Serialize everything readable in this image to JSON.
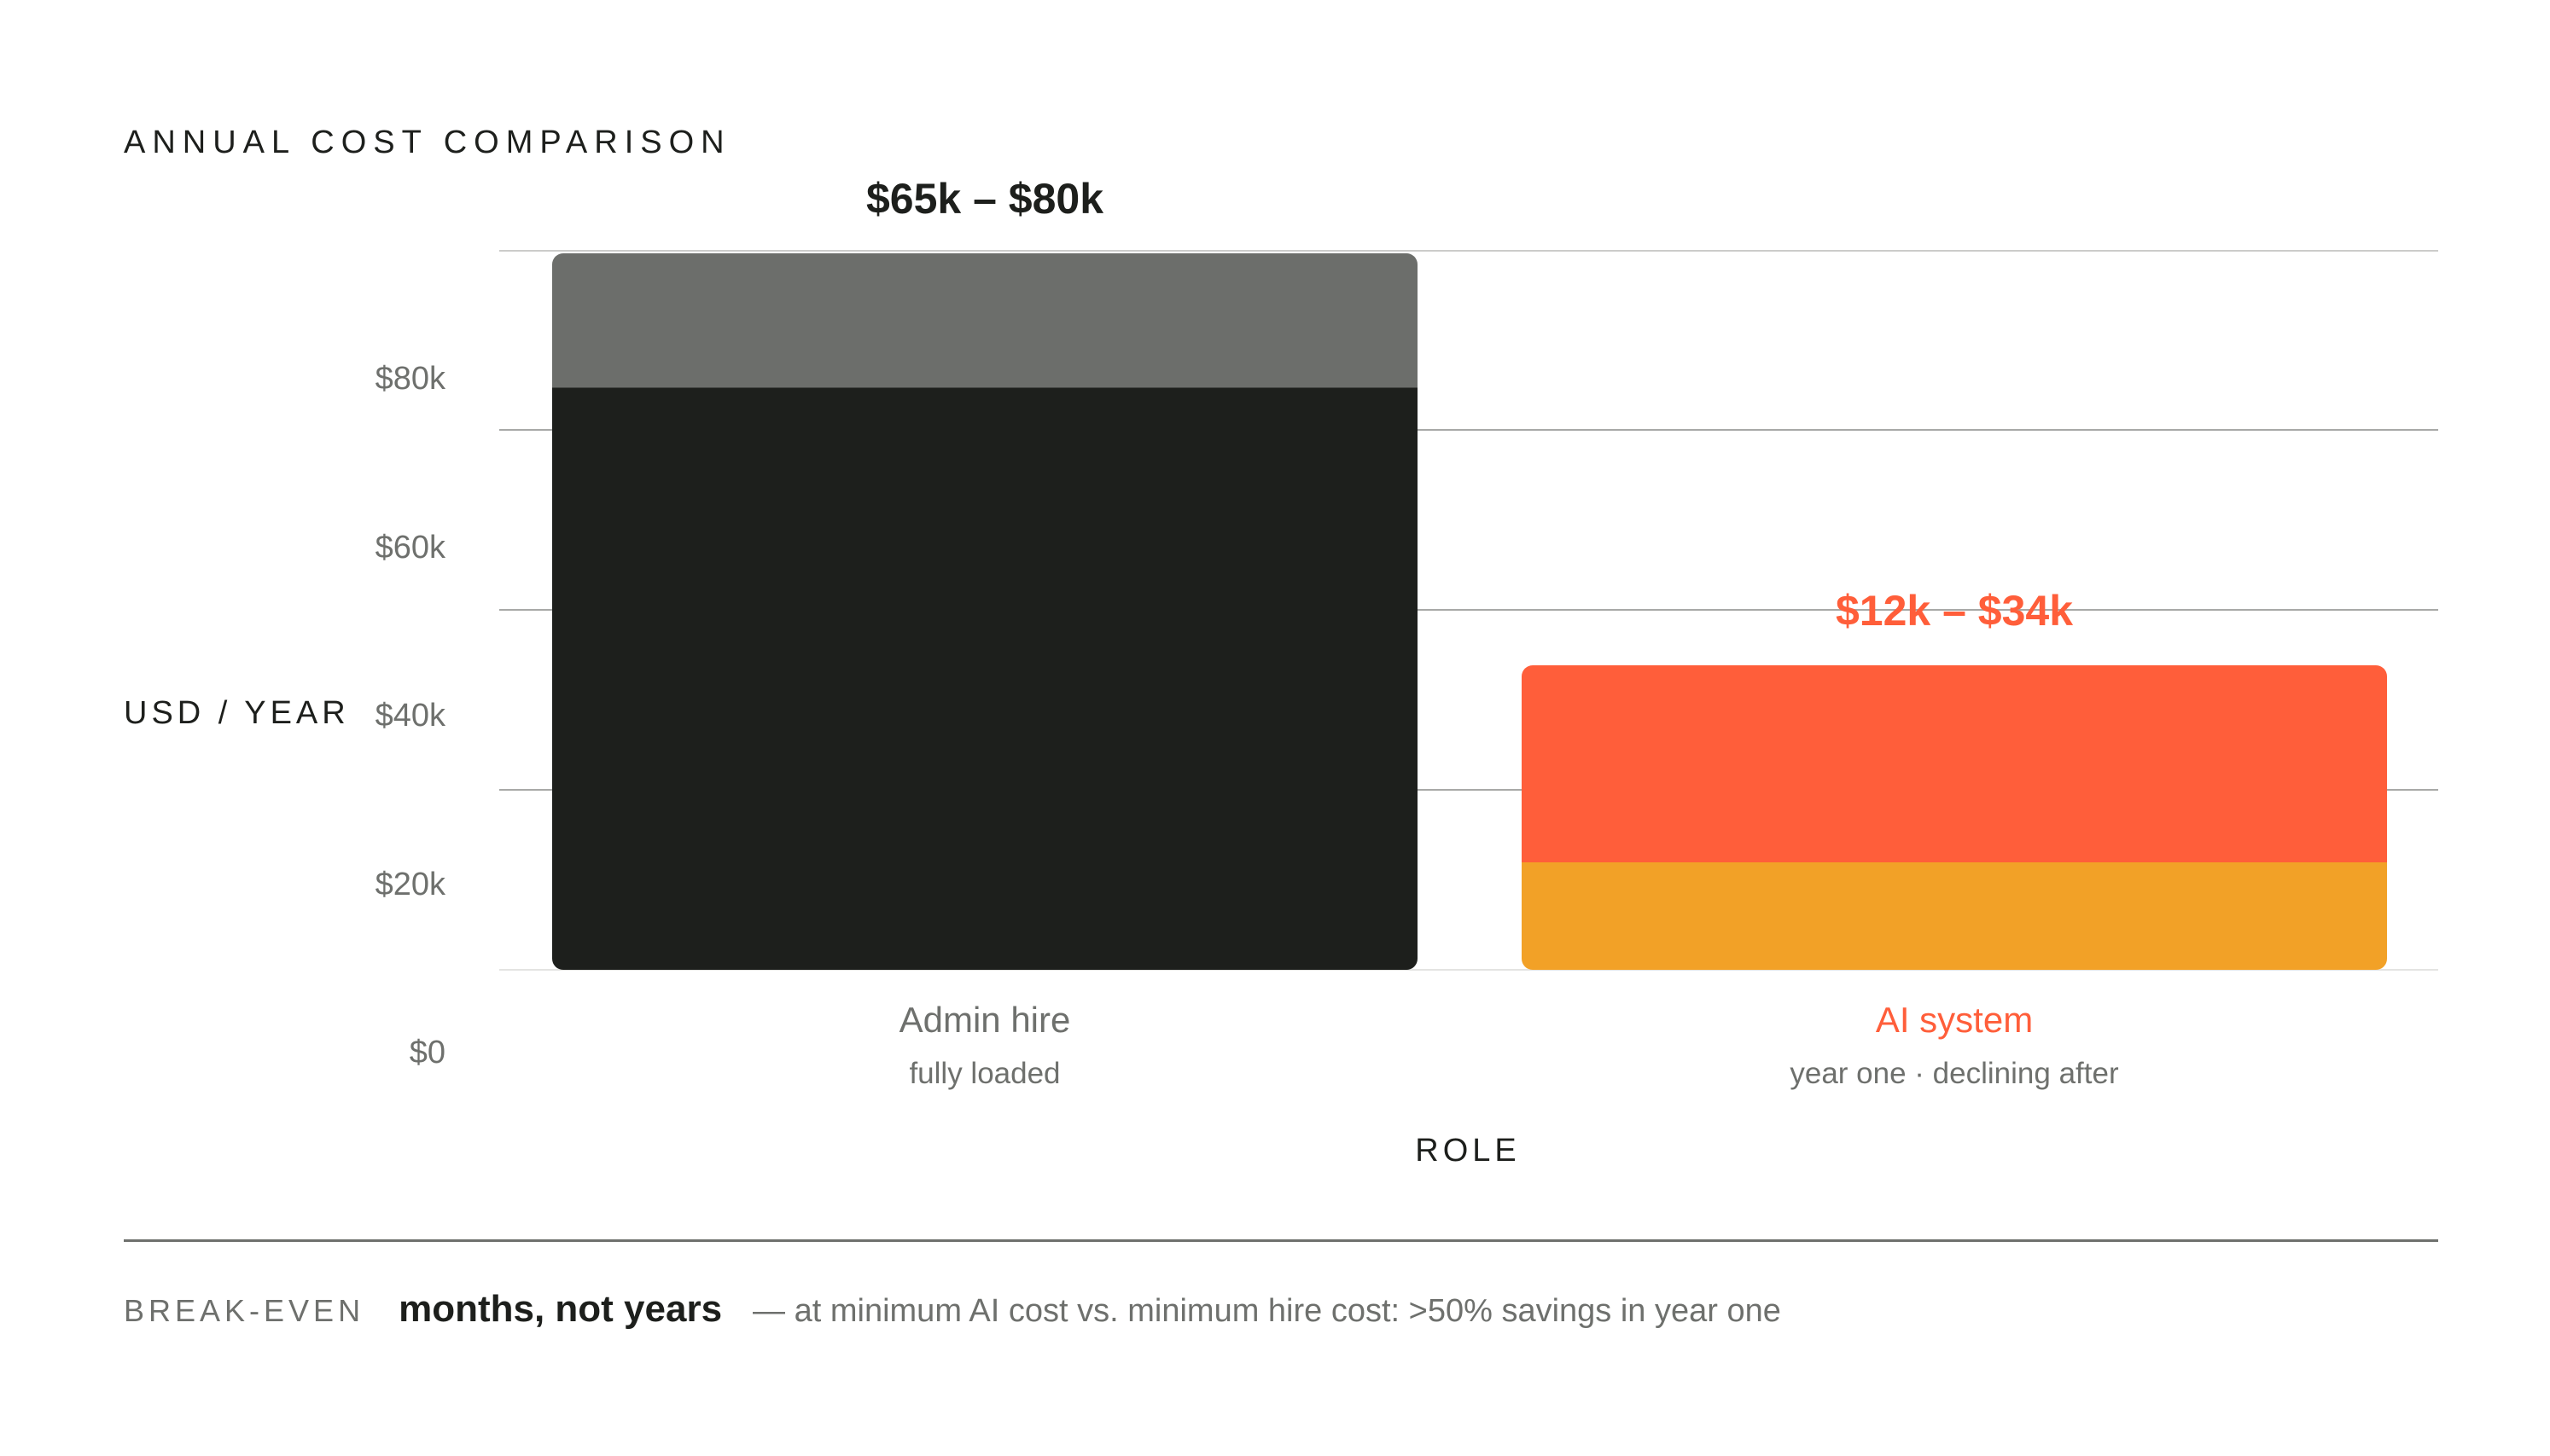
{
  "chart_data": {
    "type": "bar",
    "stacked": true,
    "title": "ANNUAL COST COMPARISON",
    "xlabel": "ROLE",
    "ylabel": "USD / YEAR",
    "ylim": [
      0,
      80000
    ],
    "yticks": [
      0,
      20000,
      40000,
      60000,
      80000
    ],
    "ytick_labels": [
      "$0",
      "$20k",
      "$40k",
      "$60k",
      "$80k"
    ],
    "grid": true,
    "categories": [
      {
        "label": "Admin hire",
        "sublabel": "fully loaded",
        "range_label": "$65k – $80k",
        "label_color": "#6e706d",
        "range_color": "#1d1f1c"
      },
      {
        "label": "AI system",
        "sublabel": "year one · declining after",
        "range_label": "$12k – $34k",
        "label_color": "#ff5e3a",
        "range_color": "#ff5e3a"
      }
    ],
    "bars": [
      {
        "segments": [
          {
            "from": 0,
            "to": 65000,
            "color": "#1d1f1c"
          },
          {
            "from": 65000,
            "to": 80000,
            "color": "#6c6e6b"
          }
        ]
      },
      {
        "segments": [
          {
            "from": 0,
            "to": 12000,
            "color": "#f2a127"
          },
          {
            "from": 12000,
            "to": 34000,
            "color": "#ff5e3a"
          }
        ]
      }
    ]
  },
  "footer": {
    "label": "BREAK-EVEN",
    "headline": "months, not years",
    "note": "— at minimum AI cost vs. minimum hire cost: >50% savings in year one"
  }
}
